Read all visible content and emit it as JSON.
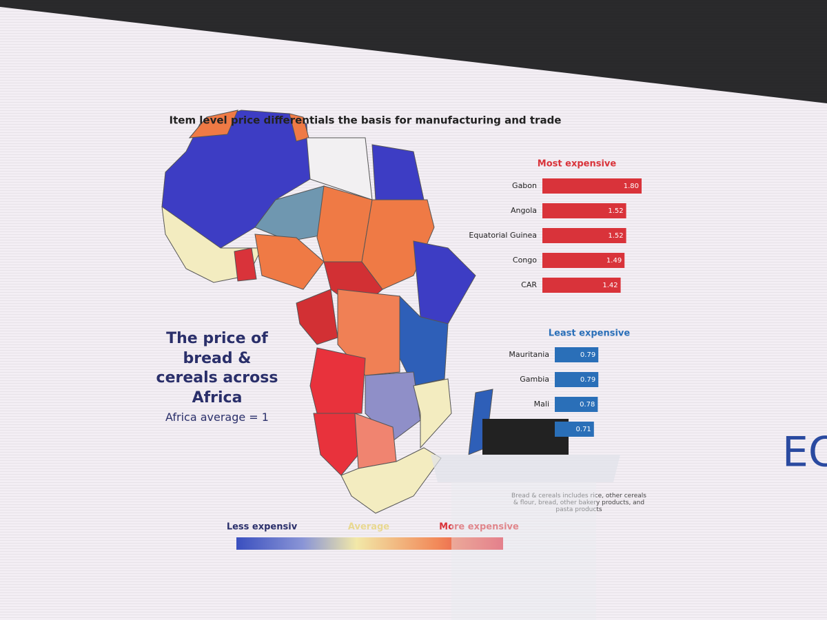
{
  "slide": {
    "title": "Item level price differentials  the basis for manufacturing and trade",
    "map_caption": "The price of bread & cereals across Africa",
    "average_note": "Africa average = 1",
    "legend": {
      "low": "Less expensiv",
      "mid": "Average",
      "high": "More expensive"
    },
    "footnote": "Bread & cereals includes rice, other cereals & flour, bread, other bakery products, and pasta products",
    "logo": "EC"
  },
  "chart_data": [
    {
      "type": "bar",
      "orientation": "horizontal",
      "title": "Most expensive",
      "categories": [
        "Gabon",
        "Angola",
        "Equatorial Guinea",
        "Congo",
        "CAR"
      ],
      "values": [
        1.8,
        1.52,
        1.52,
        1.49,
        1.42
      ],
      "value_labels": [
        "1.80",
        "1.52",
        "1.52",
        "1.49",
        "1.42"
      ],
      "color": "#d9333a"
    },
    {
      "type": "bar",
      "orientation": "horizontal",
      "title": "Least expensive",
      "categories": [
        "Mauritania",
        "Gambia",
        "Mali",
        null
      ],
      "values": [
        0.79,
        0.79,
        0.78,
        0.71
      ],
      "color": "#2a6fb8"
    }
  ]
}
